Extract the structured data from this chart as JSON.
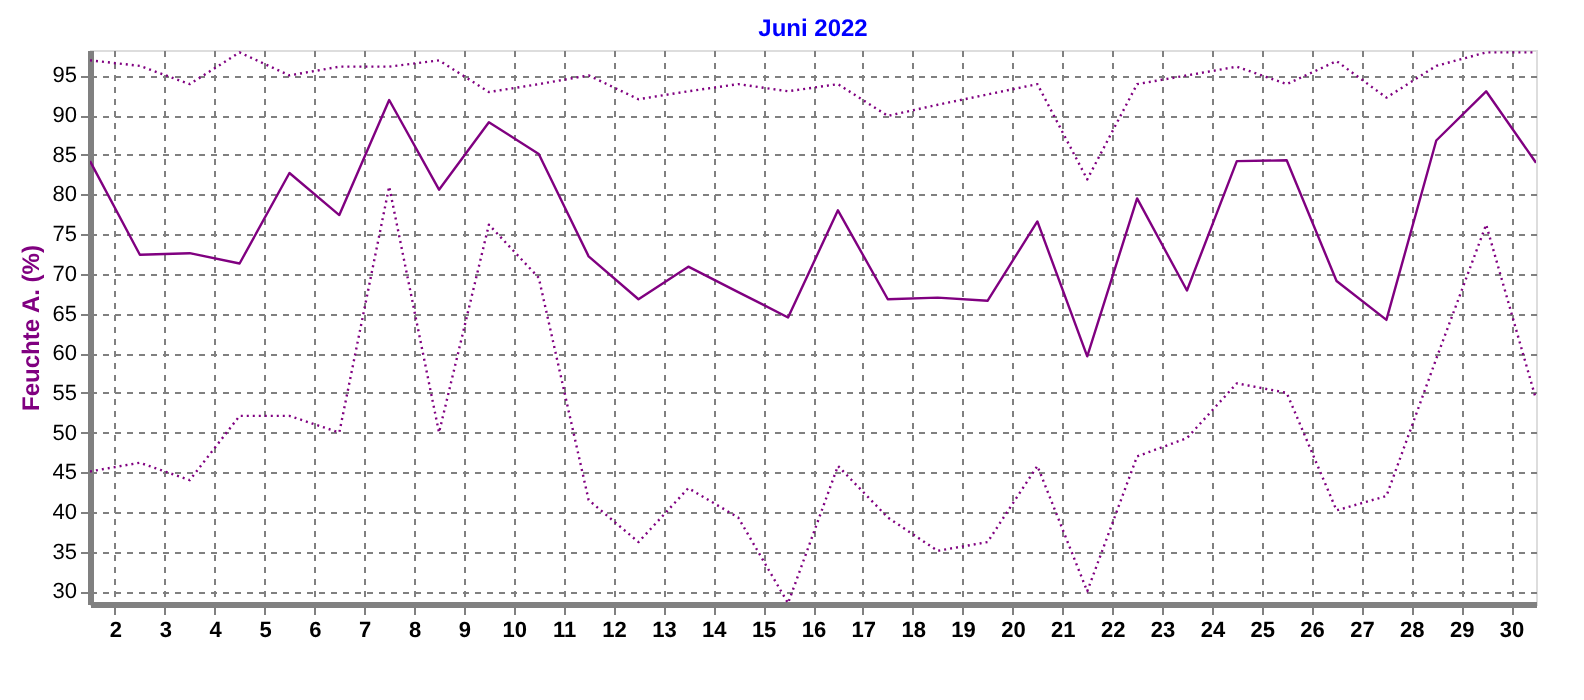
{
  "chart_data": {
    "type": "line",
    "title": "Juni 2022",
    "ylabel": "Feuchte A.  (%)",
    "x": [
      1,
      2,
      3,
      4,
      5,
      6,
      7,
      8,
      9,
      10,
      11,
      12,
      13,
      14,
      15,
      16,
      17,
      18,
      19,
      20,
      21,
      22,
      23,
      24,
      25,
      26,
      27,
      28,
      29,
      30
    ],
    "xlim": [
      1,
      30
    ],
    "xticks": [
      {
        "value": 1.5,
        "label": "2"
      },
      {
        "value": 2.5,
        "label": "3"
      },
      {
        "value": 3.5,
        "label": "4"
      },
      {
        "value": 4.5,
        "label": "5"
      },
      {
        "value": 5.5,
        "label": "6"
      },
      {
        "value": 6.5,
        "label": "7"
      },
      {
        "value": 7.5,
        "label": "8"
      },
      {
        "value": 8.5,
        "label": "9"
      },
      {
        "value": 9.5,
        "label": "10"
      },
      {
        "value": 10.5,
        "label": "11"
      },
      {
        "value": 11.5,
        "label": "12"
      },
      {
        "value": 12.5,
        "label": "13"
      },
      {
        "value": 13.5,
        "label": "14"
      },
      {
        "value": 14.5,
        "label": "15"
      },
      {
        "value": 15.5,
        "label": "16"
      },
      {
        "value": 16.5,
        "label": "17"
      },
      {
        "value": 17.5,
        "label": "18"
      },
      {
        "value": 18.5,
        "label": "19"
      },
      {
        "value": 19.5,
        "label": "20"
      },
      {
        "value": 20.5,
        "label": "21"
      },
      {
        "value": 21.5,
        "label": "22"
      },
      {
        "value": 22.5,
        "label": "23"
      },
      {
        "value": 23.5,
        "label": "24"
      },
      {
        "value": 24.5,
        "label": "25"
      },
      {
        "value": 25.5,
        "label": "26"
      },
      {
        "value": 26.5,
        "label": "27"
      },
      {
        "value": 27.5,
        "label": "28"
      },
      {
        "value": 28.5,
        "label": "29"
      },
      {
        "value": 29.5,
        "label": "30"
      }
    ],
    "ylim": [
      28.4,
      98.2
    ],
    "yticks": [
      30,
      35,
      40,
      45,
      50,
      55,
      60,
      65,
      70,
      75,
      80,
      85,
      90,
      95
    ],
    "grid": true,
    "legend": false,
    "marker": "none",
    "series": [
      {
        "color": "#800080",
        "line_style": "dotted",
        "values": [
          96.9,
          96.2,
          93.9,
          97.9,
          95,
          96.1,
          96.1,
          96.9,
          92.9,
          93.9,
          95,
          92,
          93,
          93.9,
          93,
          93.9,
          89.9,
          91.3,
          92.6,
          93.9,
          81.9,
          93.9,
          95,
          96.1,
          93.9,
          96.8,
          92.2,
          96.2,
          97.9,
          97.9
        ]
      },
      {
        "color": "#800080",
        "line_style": "solid",
        "values": [
          84.2,
          72.4,
          72.6,
          71.3,
          82.7,
          77.4,
          91.9,
          80.6,
          89.1,
          85.1,
          72.2,
          66.8,
          70.9,
          67.7,
          64.5,
          78,
          66.8,
          67,
          66.6,
          76.6,
          59.6,
          79.5,
          67.9,
          84.2,
          84.3,
          69.1,
          64.2,
          86.8,
          93,
          84
        ]
      },
      {
        "color": "#800080",
        "line_style": "dotted",
        "values": [
          45.1,
          46.2,
          44,
          52.1,
          52.1,
          50,
          81,
          50,
          76.2,
          69.5,
          41.5,
          36.2,
          43,
          39.3,
          28.5,
          45.8,
          39.3,
          35.1,
          36.2,
          45.8,
          30,
          47,
          49.3,
          56.2,
          55,
          40.2,
          42,
          59.3,
          76.2,
          54.2
        ]
      }
    ]
  }
}
